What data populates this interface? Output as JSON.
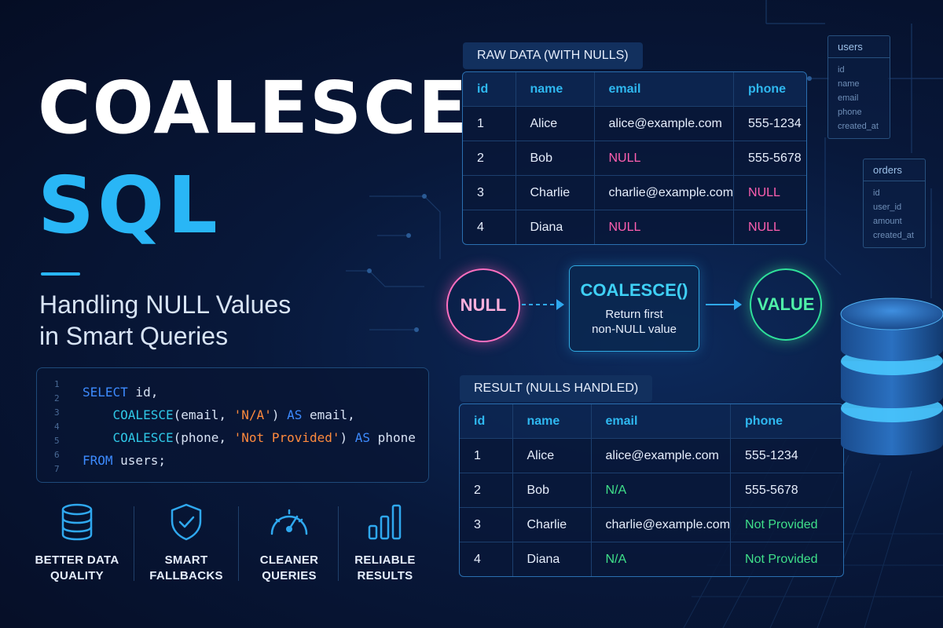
{
  "title": {
    "line1": "COALESCE",
    "line2": "SQL"
  },
  "subtitle": {
    "line1": "Handling NULL Values",
    "line2": "in Smart Queries"
  },
  "code": {
    "line_numbers": [
      "1",
      "2",
      "3",
      "4",
      "5",
      "6",
      "7"
    ],
    "lines": [
      [
        {
          "t": "SELECT",
          "c": "kw"
        },
        {
          "t": " id,",
          "c": ""
        }
      ],
      [
        {
          "t": "    COALESCE",
          "c": "fn"
        },
        {
          "t": "(email, ",
          "c": ""
        },
        {
          "t": "'N/A'",
          "c": "str"
        },
        {
          "t": ") ",
          "c": ""
        },
        {
          "t": "AS",
          "c": "kw"
        },
        {
          "t": " email,",
          "c": ""
        }
      ],
      [
        {
          "t": "    COALESCE",
          "c": "fn"
        },
        {
          "t": "(phone, ",
          "c": ""
        },
        {
          "t": "'Not Provided'",
          "c": "str"
        },
        {
          "t": ") ",
          "c": ""
        },
        {
          "t": "AS",
          "c": "kw"
        },
        {
          "t": " phone",
          "c": ""
        }
      ],
      [
        {
          "t": "FROM",
          "c": "kw"
        },
        {
          "t": " users;",
          "c": ""
        }
      ]
    ]
  },
  "benefits": [
    {
      "icon": "database-icon",
      "line1": "BETTER DATA",
      "line2": "QUALITY"
    },
    {
      "icon": "shield-check-icon",
      "line1": "SMART",
      "line2": "FALLBACKS"
    },
    {
      "icon": "gauge-icon",
      "line1": "CLEANER",
      "line2": "QUERIES"
    },
    {
      "icon": "bar-chart-icon",
      "line1": "RELIABLE",
      "line2": "RESULTS"
    }
  ],
  "raw_table": {
    "label": "RAW DATA (WITH NULLS)",
    "headers": [
      "id",
      "name",
      "email",
      "phone"
    ],
    "rows": [
      [
        "1",
        "Alice",
        "alice@example.com",
        "555-1234"
      ],
      [
        "2",
        "Bob",
        "NULL",
        "555-5678"
      ],
      [
        "3",
        "Charlie",
        "charlie@example.com",
        "NULL"
      ],
      [
        "4",
        "Diana",
        "NULL",
        "NULL"
      ]
    ]
  },
  "flow": {
    "input": "NULL",
    "function": "COALESCE()",
    "desc_line1": "Return first",
    "desc_line2": "non-NULL value",
    "output": "VALUE"
  },
  "result_table": {
    "label": "RESULT (NULLS HANDLED)",
    "headers": [
      "id",
      "name",
      "email",
      "phone"
    ],
    "rows": [
      [
        "1",
        "Alice",
        "alice@example.com",
        "555-1234"
      ],
      [
        "2",
        "Bob",
        "N/A",
        "555-5678"
      ],
      [
        "3",
        "Charlie",
        "charlie@example.com",
        "Not Provided"
      ],
      [
        "4",
        "Diana",
        "N/A",
        "Not Provided"
      ]
    ],
    "filled_cells": [
      [
        1,
        2
      ],
      [
        2,
        3
      ],
      [
        3,
        2
      ],
      [
        3,
        3
      ]
    ]
  },
  "schemas": {
    "users": {
      "name": "users",
      "fields": [
        "id",
        "name",
        "email",
        "phone",
        "created_at"
      ]
    },
    "orders": {
      "name": "orders",
      "fields": [
        "id",
        "user_id",
        "amount",
        "created_at"
      ]
    }
  },
  "colors": {
    "accent": "#29b6f6",
    "null": "#ff5fb0",
    "filled": "#3fe08a",
    "background": "#08183a"
  }
}
